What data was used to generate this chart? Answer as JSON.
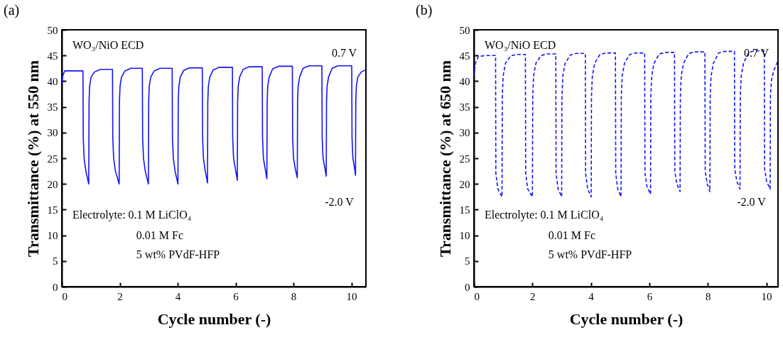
{
  "chart_data": [
    {
      "type": "line",
      "title": "(a)",
      "xlabel": "Cycle number (-)",
      "ylabel": "Transmittance (%) at 550 nm",
      "color": "#1414f5",
      "line_style": "solid",
      "grid": false,
      "xlim": [
        0,
        10.5
      ],
      "xticks": [
        0,
        2,
        4,
        6,
        8,
        10
      ],
      "ylim": [
        0,
        50
      ],
      "yticks": [
        0,
        5,
        10,
        15,
        20,
        25,
        30,
        35,
        40,
        45,
        50
      ],
      "annotations": [
        "WO₃/NiO ECD",
        "0.7 V",
        "-2.0 V",
        "Electrolyte: 0.1 M LiClO₄",
        "0.01 M Fc",
        "5 wt% PVdF-HFP"
      ],
      "x": [
        0,
        0.03,
        0.1,
        0.4,
        0.73,
        0.74,
        0.77,
        0.83,
        0.93,
        0.94,
        0.96,
        1.01,
        1.13,
        1.33,
        1.75,
        1.76,
        1.79,
        1.85,
        1.98,
        1.99,
        2.01,
        2.06,
        2.18,
        2.38,
        2.78,
        2.79,
        2.82,
        2.88,
        2.99,
        3.0,
        3.02,
        3.07,
        3.19,
        3.39,
        3.81,
        3.82,
        3.85,
        3.91,
        4.01,
        4.02,
        4.04,
        4.09,
        4.21,
        4.41,
        4.85,
        4.86,
        4.89,
        4.95,
        5.03,
        5.04,
        5.06,
        5.11,
        5.23,
        5.43,
        5.89,
        5.9,
        5.93,
        5.99,
        6.06,
        6.07,
        6.09,
        6.14,
        6.26,
        6.46,
        6.92,
        6.93,
        6.96,
        7.02,
        7.08,
        7.09,
        7.11,
        7.16,
        7.28,
        7.48,
        7.96,
        7.97,
        8.0,
        8.06,
        8.13,
        8.14,
        8.16,
        8.21,
        8.33,
        8.53,
        8.98,
        8.99,
        9.02,
        9.08,
        9.13,
        9.14,
        9.16,
        9.21,
        9.33,
        9.53,
        10.01,
        10.02,
        10.05,
        10.1,
        10.14,
        10.15,
        10.17,
        10.22,
        10.34,
        10.5
      ],
      "values": [
        39.5,
        41,
        42,
        42,
        42,
        29,
        25,
        22.5,
        20,
        36,
        39,
        40.8,
        41.8,
        42.3,
        42.3,
        29,
        25,
        22.5,
        20,
        36,
        39,
        40.8,
        42,
        42.5,
        42.5,
        29,
        25,
        22.5,
        20,
        36,
        39,
        40.8,
        42,
        42.5,
        42.5,
        29,
        25,
        22.5,
        20,
        36,
        39,
        40.8,
        42.1,
        42.6,
        42.6,
        29,
        25,
        22.6,
        20.2,
        36,
        39,
        40.8,
        42.2,
        42.7,
        42.7,
        29,
        25,
        23,
        20.7,
        36,
        39,
        40.8,
        42.3,
        42.8,
        42.8,
        29,
        25,
        23,
        21,
        36,
        39,
        40.8,
        42.4,
        42.9,
        42.9,
        29,
        25,
        23,
        21.2,
        36,
        39,
        40.8,
        42.5,
        43,
        43,
        29,
        25,
        23.2,
        21.5,
        36,
        39,
        40.8,
        42.5,
        43,
        43,
        29,
        25,
        23.4,
        21.7,
        36,
        39,
        40.8,
        41.8,
        42.2
      ]
    },
    {
      "type": "line",
      "title": "(b)",
      "xlabel": "Cycle number (-)",
      "ylabel": "Transmittance (%) at 650 nm",
      "color": "#1414f5",
      "line_style": "dashed",
      "grid": false,
      "xlim": [
        0,
        10.4
      ],
      "xticks": [
        0,
        2,
        4,
        6,
        8,
        10
      ],
      "ylim": [
        0,
        50
      ],
      "yticks": [
        0,
        5,
        10,
        15,
        20,
        25,
        30,
        35,
        40,
        45,
        50
      ],
      "annotations": [
        "WO₃/NiO ECD",
        "0.7 V",
        "-2.0 V",
        "Electrolyte: 0.1 M LiClO₄",
        "0.01 M Fc",
        "5 wt% PVdF-HFP"
      ],
      "x": [
        0,
        0.05,
        0.15,
        0.4,
        0.74,
        0.75,
        0.82,
        0.96,
        0.97,
        1.0,
        1.08,
        1.26,
        1.46,
        1.76,
        1.77,
        1.84,
        2.0,
        2.01,
        2.04,
        2.12,
        2.3,
        2.5,
        2.8,
        2.81,
        2.88,
        3.0,
        3.01,
        3.04,
        3.12,
        3.3,
        3.5,
        3.81,
        3.82,
        3.89,
        4.01,
        4.02,
        4.05,
        4.13,
        4.31,
        4.51,
        4.84,
        4.85,
        4.92,
        5.03,
        5.04,
        5.07,
        5.15,
        5.33,
        5.53,
        5.84,
        5.85,
        5.92,
        6.04,
        6.05,
        6.08,
        6.16,
        6.34,
        6.54,
        6.86,
        6.87,
        6.94,
        7.05,
        7.06,
        7.09,
        7.17,
        7.35,
        7.55,
        7.9,
        7.91,
        7.98,
        8.07,
        8.08,
        8.11,
        8.19,
        8.37,
        8.57,
        8.91,
        8.92,
        8.99,
        9.1,
        9.11,
        9.14,
        9.22,
        9.4,
        9.6,
        9.93,
        9.94,
        10.01,
        10.13,
        10.14,
        10.17,
        10.25,
        10.4
      ],
      "values": [
        41,
        43.5,
        44.8,
        45,
        45,
        22,
        19,
        17.5,
        37,
        41,
        43.5,
        44.9,
        45.2,
        45.2,
        22,
        19,
        17.5,
        37,
        41,
        43.5,
        45,
        45.3,
        45.3,
        22,
        19,
        17.5,
        37,
        41,
        43.5,
        45.1,
        45.4,
        45.4,
        22,
        19,
        17.5,
        37,
        41,
        43.5,
        45.2,
        45.5,
        45.5,
        22,
        19,
        17.5,
        37,
        41,
        43.5,
        45.2,
        45.5,
        45.5,
        22,
        19.5,
        18,
        37,
        41,
        43.5,
        45.3,
        45.6,
        45.6,
        22.5,
        20,
        18.5,
        37,
        41,
        43.5,
        45.4,
        45.7,
        45.7,
        22.5,
        20,
        18.5,
        37,
        41,
        43.5,
        45.5,
        45.8,
        45.8,
        23,
        20.5,
        19,
        37,
        41,
        43.5,
        45.6,
        45.9,
        45.9,
        23,
        20.5,
        19,
        37,
        40,
        42,
        44
      ]
    }
  ]
}
